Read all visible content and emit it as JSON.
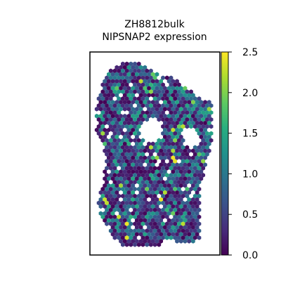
{
  "chart_data": {
    "type": "scatter",
    "title_lines": [
      "ZH8812bulk",
      "NIPSNAP2 expression"
    ],
    "xlabel": "",
    "ylabel": "",
    "grid": false,
    "marker": "hexagon",
    "colormap": "viridis",
    "colorbar": {
      "range": [
        0.0,
        2.5
      ],
      "ticks": [
        0.0,
        0.5,
        1.0,
        1.5,
        2.0,
        2.5
      ],
      "tick_labels": [
        "0.0",
        "0.5",
        "1.0",
        "1.5",
        "2.0",
        "2.5"
      ]
    },
    "value_distribution": {
      "typical_range": [
        0.0,
        1.5
      ],
      "max": 2.5
    }
  }
}
